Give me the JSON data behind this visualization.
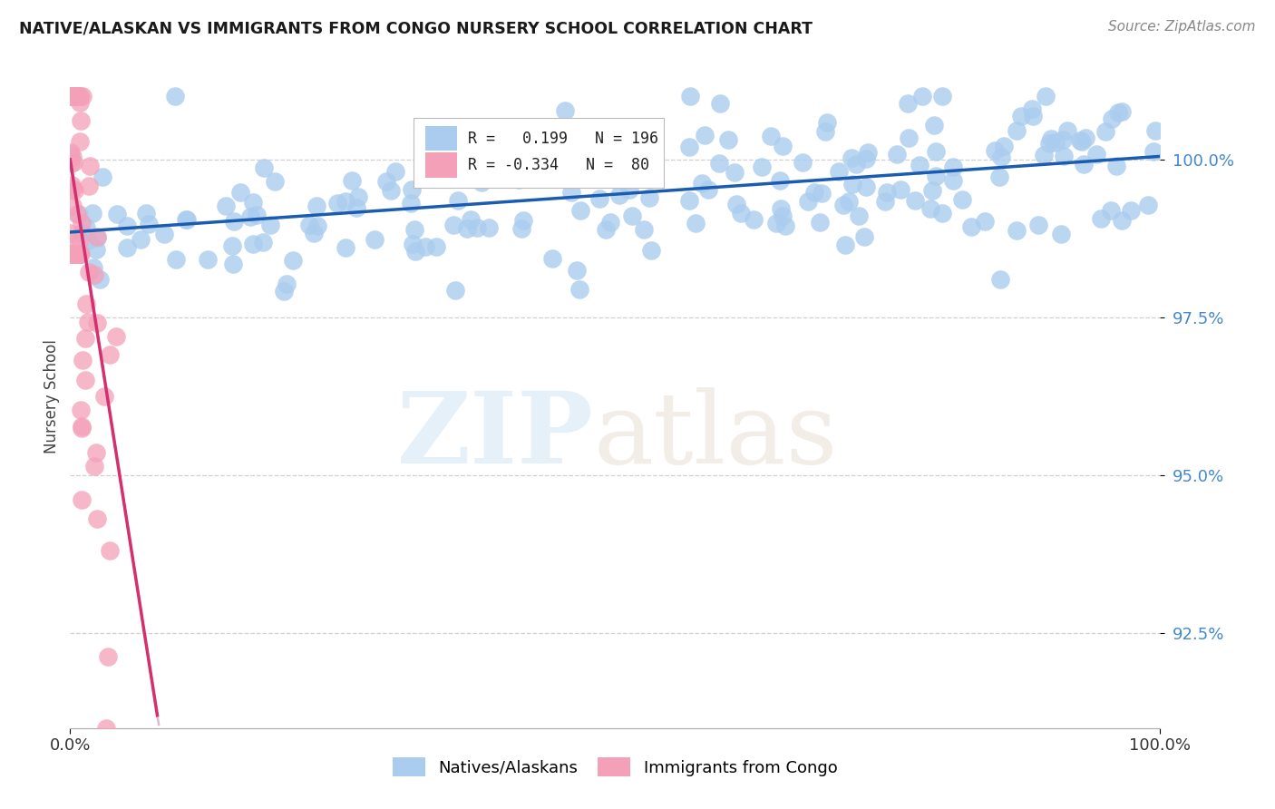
{
  "title": "NATIVE/ALASKAN VS IMMIGRANTS FROM CONGO NURSERY SCHOOL CORRELATION CHART",
  "source": "Source: ZipAtlas.com",
  "ylabel": "Nursery School",
  "xmin": 0.0,
  "xmax": 100.0,
  "ymin": 91.0,
  "ymax": 101.5,
  "yticks": [
    92.5,
    95.0,
    97.5,
    100.0
  ],
  "ytick_labels": [
    "92.5%",
    "95.0%",
    "97.5%",
    "100.0%"
  ],
  "xtick_labels": [
    "0.0%",
    "100.0%"
  ],
  "legend_label1": "Natives/Alaskans",
  "legend_label2": "Immigrants from Congo",
  "blue_scatter_color": "#aaccee",
  "pink_scatter_color": "#f4a0b8",
  "blue_line_color": "#1a5cb0",
  "pink_line_color": "#d43070",
  "pink_dashed_color": "#d8b0c0",
  "blue_r": 0.199,
  "blue_n": 196,
  "pink_r": -0.334,
  "pink_n": 80,
  "background_color": "#ffffff",
  "grid_color": "#cccccc",
  "ytick_color": "#4488cc",
  "title_fontsize": 12.5,
  "source_fontsize": 11,
  "tick_fontsize": 13
}
